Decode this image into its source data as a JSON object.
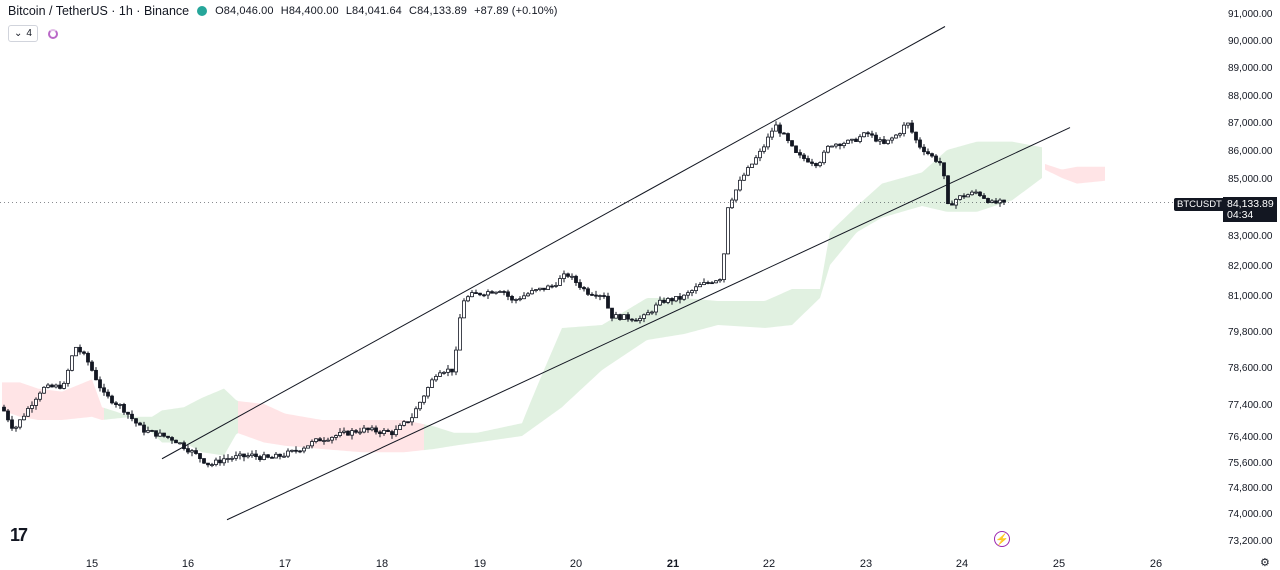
{
  "header": {
    "symbol": "Bitcoin / TetherUS · 1h · Binance",
    "open": "O84,046.00",
    "high": "H84,400.00",
    "low": "L84,041.64",
    "close": "C84,133.89",
    "change": "+87.89 (+0.10%)"
  },
  "indicator_row": {
    "collapse_label": "4"
  },
  "price_label": {
    "symbol": "BTCUSDT",
    "price": "84,133.89",
    "countdown": "04:34"
  },
  "colors": {
    "up": "#131722",
    "down": "#131722",
    "cloud_bull": "#c8e6c9",
    "cloud_bear": "#ffcdd2",
    "accent": "#9c27b0",
    "status_dot": "#26a69a"
  },
  "chart_data": {
    "type": "candlestick",
    "y_ticks": [
      "91,000.00",
      "90,000.00",
      "89,000.00",
      "88,000.00",
      "87,000.00",
      "86,000.00",
      "85,000.00",
      "84,000.00",
      "83,000.00",
      "82,000.00",
      "81,000.00",
      "79,800.00",
      "78,600.00",
      "77,400.00",
      "76,400.00",
      "75,600.00",
      "74,800.00",
      "74,000.00",
      "73,200.00"
    ],
    "x_ticks": [
      "15",
      "16",
      "17",
      "18",
      "19",
      "20",
      "21",
      "22",
      "23",
      "24",
      "25",
      "26"
    ],
    "x_ticks_bold": [
      "21"
    ],
    "last_price": 84133.89,
    "anchors": [
      {
        "t": 0,
        "p": 77300
      },
      {
        "t": 12,
        "p": 76600
      },
      {
        "t": 40,
        "p": 77900
      },
      {
        "t": 62,
        "p": 78000
      },
      {
        "t": 73,
        "p": 79300
      },
      {
        "t": 84,
        "p": 78900
      },
      {
        "t": 102,
        "p": 77700
      },
      {
        "t": 120,
        "p": 77300
      },
      {
        "t": 140,
        "p": 76600
      },
      {
        "t": 172,
        "p": 76300
      },
      {
        "t": 195,
        "p": 75800
      },
      {
        "t": 208,
        "p": 75500
      },
      {
        "t": 222,
        "p": 75700
      },
      {
        "t": 250,
        "p": 75800
      },
      {
        "t": 268,
        "p": 75700
      },
      {
        "t": 290,
        "p": 75900
      },
      {
        "t": 318,
        "p": 76300
      },
      {
        "t": 360,
        "p": 76600
      },
      {
        "t": 392,
        "p": 76500
      },
      {
        "t": 410,
        "p": 77000
      },
      {
        "t": 436,
        "p": 78500
      },
      {
        "t": 452,
        "p": 78500
      },
      {
        "t": 460,
        "p": 80800
      },
      {
        "t": 470,
        "p": 81000
      },
      {
        "t": 500,
        "p": 81200
      },
      {
        "t": 510,
        "p": 80800
      },
      {
        "t": 530,
        "p": 81100
      },
      {
        "t": 550,
        "p": 81300
      },
      {
        "t": 565,
        "p": 81700
      },
      {
        "t": 585,
        "p": 81100
      },
      {
        "t": 603,
        "p": 81000
      },
      {
        "t": 608,
        "p": 80300
      },
      {
        "t": 640,
        "p": 80200
      },
      {
        "t": 660,
        "p": 80800
      },
      {
        "t": 680,
        "p": 80900
      },
      {
        "t": 697,
        "p": 81300
      },
      {
        "t": 720,
        "p": 81600
      },
      {
        "t": 726,
        "p": 84000
      },
      {
        "t": 740,
        "p": 85000
      },
      {
        "t": 760,
        "p": 86000
      },
      {
        "t": 773,
        "p": 86900
      },
      {
        "t": 782,
        "p": 86500
      },
      {
        "t": 795,
        "p": 85800
      },
      {
        "t": 816,
        "p": 85500
      },
      {
        "t": 828,
        "p": 86200
      },
      {
        "t": 850,
        "p": 86300
      },
      {
        "t": 865,
        "p": 86600
      },
      {
        "t": 882,
        "p": 86200
      },
      {
        "t": 897,
        "p": 86600
      },
      {
        "t": 905,
        "p": 87000
      },
      {
        "t": 916,
        "p": 86200
      },
      {
        "t": 932,
        "p": 85700
      },
      {
        "t": 940,
        "p": 85500
      },
      {
        "t": 946,
        "p": 84000
      },
      {
        "t": 956,
        "p": 84300
      },
      {
        "t": 975,
        "p": 84500
      },
      {
        "t": 990,
        "p": 84100
      },
      {
        "t": 1002,
        "p": 84134
      }
    ],
    "channel": {
      "upper": [
        {
          "t": 160,
          "p": 75700
        },
        {
          "t": 943,
          "p": 90500
        }
      ],
      "lower": [
        {
          "t": 225,
          "p": 73800
        },
        {
          "t": 1068,
          "p": 86800
        }
      ]
    },
    "cloud_top": [
      {
        "t": 0,
        "p": 78100
      },
      {
        "t": 18,
        "p": 78100
      },
      {
        "t": 36,
        "p": 77900
      },
      {
        "t": 60,
        "p": 77800
      },
      {
        "t": 90,
        "p": 78200
      },
      {
        "t": 100,
        "p": 77300
      },
      {
        "t": 130,
        "p": 77000
      },
      {
        "t": 150,
        "p": 77000
      },
      {
        "t": 160,
        "p": 77200
      },
      {
        "t": 182,
        "p": 77300
      },
      {
        "t": 200,
        "p": 77600
      },
      {
        "t": 222,
        "p": 77900
      },
      {
        "t": 235,
        "p": 77500
      },
      {
        "t": 262,
        "p": 77400
      },
      {
        "t": 283,
        "p": 77100
      },
      {
        "t": 320,
        "p": 76900
      },
      {
        "t": 360,
        "p": 76900
      },
      {
        "t": 402,
        "p": 76900
      },
      {
        "t": 432,
        "p": 76700
      },
      {
        "t": 452,
        "p": 76500
      },
      {
        "t": 475,
        "p": 76500
      },
      {
        "t": 520,
        "p": 76800
      },
      {
        "t": 560,
        "p": 79900
      },
      {
        "t": 600,
        "p": 80000
      },
      {
        "t": 645,
        "p": 80900
      },
      {
        "t": 682,
        "p": 80900
      },
      {
        "t": 716,
        "p": 80800
      },
      {
        "t": 763,
        "p": 80800
      },
      {
        "t": 790,
        "p": 81200
      },
      {
        "t": 818,
        "p": 81200
      },
      {
        "t": 828,
        "p": 83100
      },
      {
        "t": 855,
        "p": 84000
      },
      {
        "t": 880,
        "p": 84800
      },
      {
        "t": 920,
        "p": 85200
      },
      {
        "t": 945,
        "p": 86000
      },
      {
        "t": 975,
        "p": 86300
      },
      {
        "t": 1010,
        "p": 86300
      },
      {
        "t": 1040,
        "p": 86100
      }
    ],
    "cloud_bottom": [
      {
        "t": 0,
        "p": 77200
      },
      {
        "t": 18,
        "p": 77000
      },
      {
        "t": 36,
        "p": 76900
      },
      {
        "t": 60,
        "p": 76900
      },
      {
        "t": 90,
        "p": 77000
      },
      {
        "t": 100,
        "p": 76900
      },
      {
        "t": 130,
        "p": 77000
      },
      {
        "t": 150,
        "p": 76500
      },
      {
        "t": 160,
        "p": 76200
      },
      {
        "t": 182,
        "p": 76200
      },
      {
        "t": 200,
        "p": 75900
      },
      {
        "t": 222,
        "p": 75800
      },
      {
        "t": 235,
        "p": 76500
      },
      {
        "t": 262,
        "p": 76200
      },
      {
        "t": 283,
        "p": 76100
      },
      {
        "t": 320,
        "p": 76000
      },
      {
        "t": 360,
        "p": 75900
      },
      {
        "t": 402,
        "p": 75900
      },
      {
        "t": 432,
        "p": 76000
      },
      {
        "t": 452,
        "p": 76100
      },
      {
        "t": 475,
        "p": 76200
      },
      {
        "t": 520,
        "p": 76400
      },
      {
        "t": 560,
        "p": 77300
      },
      {
        "t": 600,
        "p": 78500
      },
      {
        "t": 645,
        "p": 79500
      },
      {
        "t": 682,
        "p": 79700
      },
      {
        "t": 716,
        "p": 80000
      },
      {
        "t": 763,
        "p": 79900
      },
      {
        "t": 790,
        "p": 80000
      },
      {
        "t": 818,
        "p": 80900
      },
      {
        "t": 828,
        "p": 82000
      },
      {
        "t": 855,
        "p": 83100
      },
      {
        "t": 880,
        "p": 83600
      },
      {
        "t": 920,
        "p": 84000
      },
      {
        "t": 945,
        "p": 83800
      },
      {
        "t": 975,
        "p": 83800
      },
      {
        "t": 1010,
        "p": 84200
      },
      {
        "t": 1040,
        "p": 85000
      }
    ],
    "cloud_bear_segments": [
      [
        0,
        100
      ],
      [
        235,
        420
      ]
    ],
    "future_cloud": {
      "top": [
        {
          "t": 1043,
          "p": 85500
        },
        {
          "t": 1060,
          "p": 85300
        },
        {
          "t": 1075,
          "p": 85400
        },
        {
          "t": 1103,
          "p": 85400
        }
      ],
      "bottom": [
        {
          "t": 1043,
          "p": 85300
        },
        {
          "t": 1060,
          "p": 85000
        },
        {
          "t": 1075,
          "p": 84800
        },
        {
          "t": 1103,
          "p": 84900
        }
      ]
    }
  }
}
